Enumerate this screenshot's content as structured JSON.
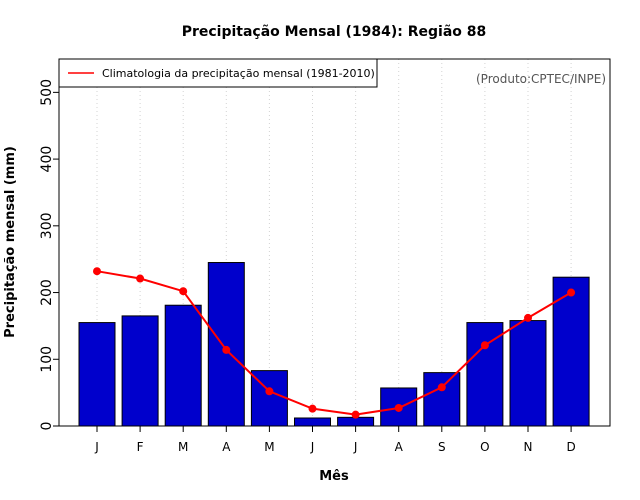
{
  "chart_data": {
    "type": "bar",
    "title": "Precipitação Mensal (1984): Região 88",
    "xlabel": "Mês",
    "ylabel": "Precipitação mensal (mm)",
    "categories": [
      "J",
      "F",
      "M",
      "A",
      "M",
      "J",
      "J",
      "A",
      "S",
      "O",
      "N",
      "D"
    ],
    "ylim": [
      0,
      550
    ],
    "yticks": [
      0,
      100,
      200,
      300,
      400,
      500
    ],
    "grid": "vertical-dotted",
    "bar_series": {
      "name": "Precipitação mensal (1984)",
      "color": "#0000cc",
      "values": [
        155,
        165,
        181,
        245,
        83,
        12,
        13,
        57,
        80,
        155,
        158,
        223
      ]
    },
    "line_series": {
      "name": "Climatologia da precipitação mensal (1981-2010)",
      "color": "#ff0000",
      "values": [
        232,
        221,
        202,
        114,
        52,
        26,
        17,
        27,
        58,
        121,
        162,
        200
      ]
    },
    "legend": {
      "placement": "top-left",
      "label": "Climatologia da precipitação mensal (1981-2010)"
    },
    "credit": "(Produto:CPTEC/INPE)"
  }
}
